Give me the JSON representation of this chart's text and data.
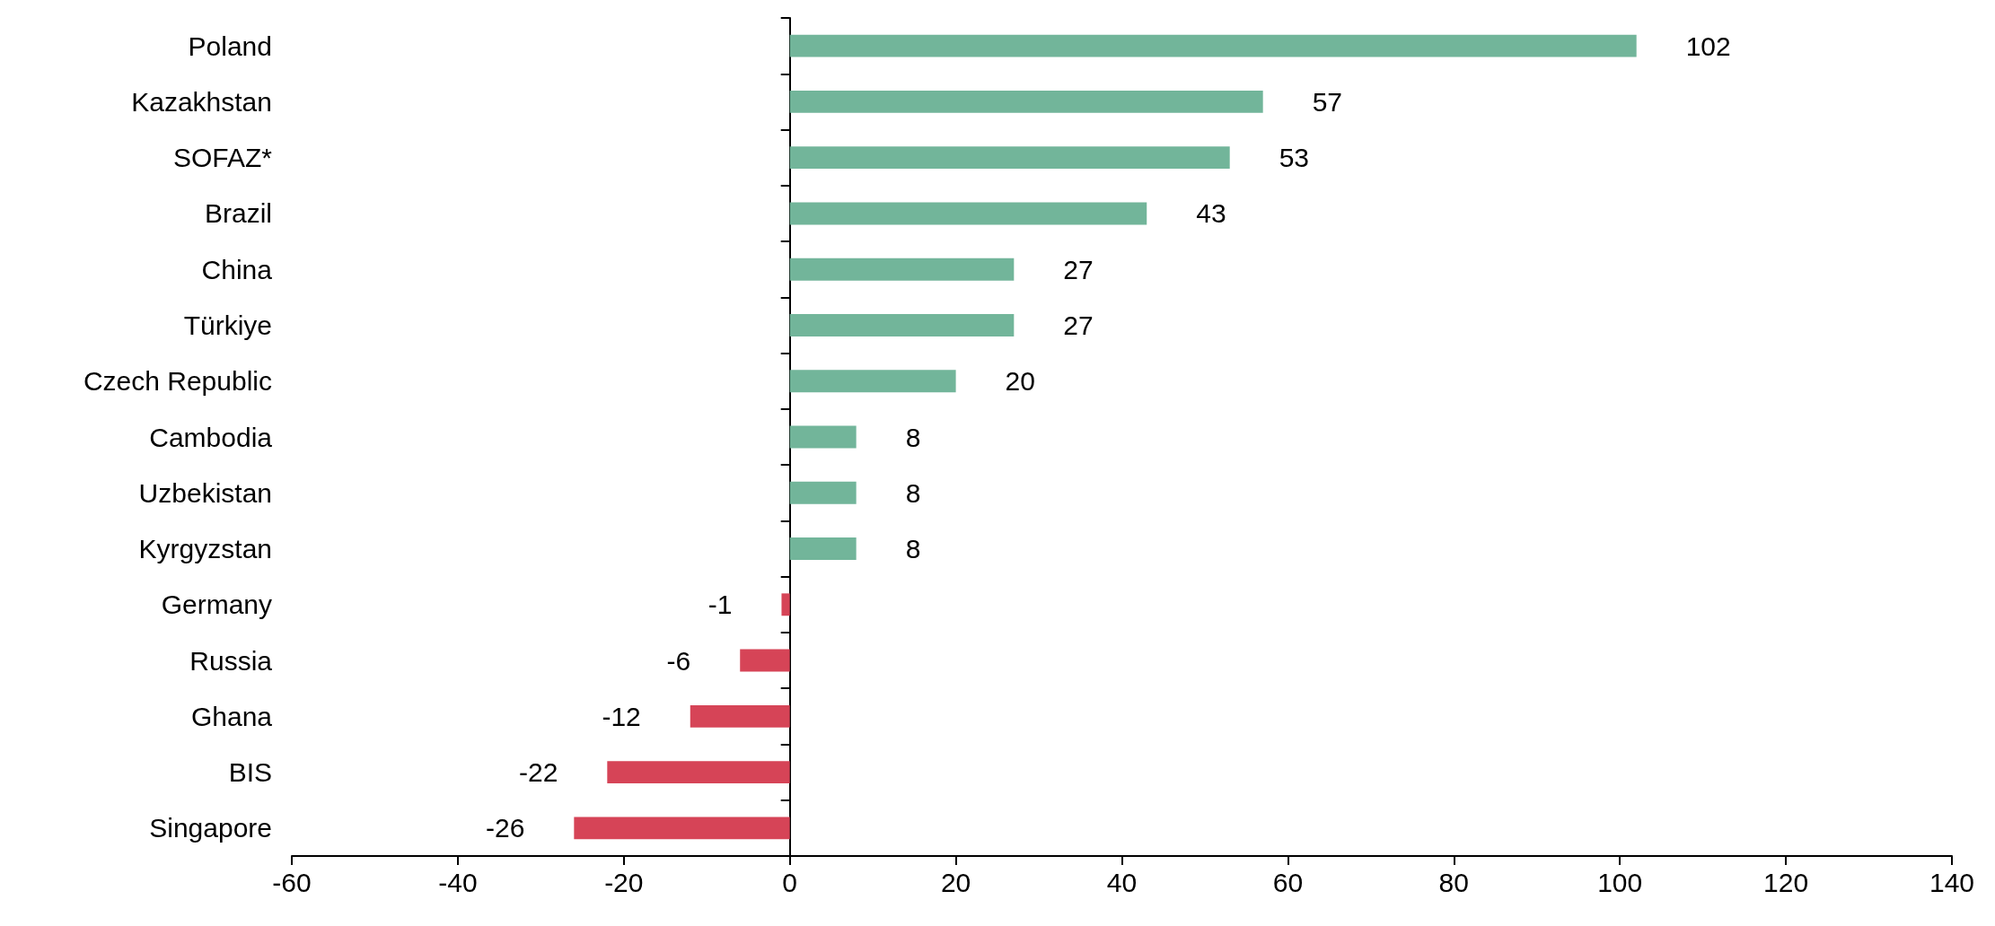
{
  "chart_data": {
    "type": "bar",
    "orientation": "horizontal",
    "categories": [
      "Poland",
      "Kazakhstan",
      "SOFAZ*",
      "Brazil",
      "China",
      "Türkiye",
      "Czech Republic",
      "Cambodia",
      "Uzbekistan",
      "Kyrgyzstan",
      "Germany",
      "Russia",
      "Ghana",
      "BIS",
      "Singapore"
    ],
    "values": [
      102,
      57,
      53,
      43,
      27,
      27,
      20,
      8,
      8,
      8,
      -1,
      -6,
      -12,
      -22,
      -26
    ],
    "colors": [
      "#72b59a",
      "#72b59a",
      "#72b59a",
      "#72b59a",
      "#72b59a",
      "#72b59a",
      "#72b59a",
      "#72b59a",
      "#72b59a",
      "#72b59a",
      "#d64457",
      "#d64457",
      "#d64457",
      "#d64457",
      "#d64457"
    ],
    "xlim": [
      -60,
      140
    ],
    "xticks": [
      -60,
      -40,
      -20,
      0,
      20,
      40,
      60,
      80,
      100,
      120,
      140
    ],
    "data_labels": true
  }
}
